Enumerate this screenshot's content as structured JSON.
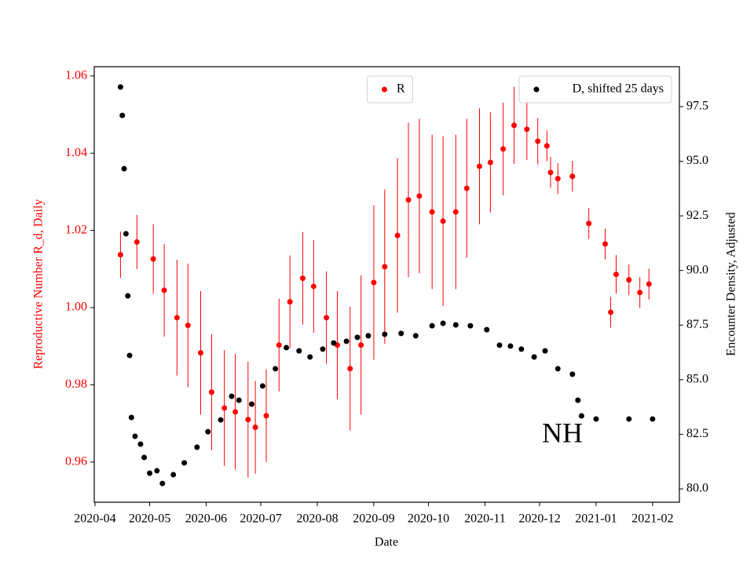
{
  "chart_data": {
    "type": "scatter",
    "xlabel": "Date",
    "ylabel": "Reproductive Number R_d, Daily",
    "y2label": "Encounter Density, Adjusted",
    "annotation": "NH",
    "xlim": [
      18352.6,
      18673.7
    ],
    "xticks": [
      {
        "value": 18353,
        "label": "2020-04"
      },
      {
        "value": 18383,
        "label": "2020-05"
      },
      {
        "value": 18414,
        "label": "2020-06"
      },
      {
        "value": 18444,
        "label": "2020-07"
      },
      {
        "value": 18475,
        "label": "2020-08"
      },
      {
        "value": 18506,
        "label": "2020-09"
      },
      {
        "value": 18536,
        "label": "2020-10"
      },
      {
        "value": 18567,
        "label": "2020-11"
      },
      {
        "value": 18597,
        "label": "2020-12"
      },
      {
        "value": 18628,
        "label": "2021-01"
      },
      {
        "value": 18659,
        "label": "2021-02"
      }
    ],
    "ylim": [
      0.9496,
      1.0624
    ],
    "yticks": [
      0.96,
      0.98,
      {
        "value": 1.0,
        "label": "1.00"
      },
      1.02,
      1.04,
      1.06
    ],
    "y2lim": [
      79.39,
      99.33
    ],
    "y2ticks": [
      {
        "value": 80,
        "label": "80.0"
      },
      82.5,
      {
        "value": 85,
        "label": "85.0"
      },
      87.5,
      {
        "value": 90,
        "label": "90.0"
      },
      92.5,
      {
        "value": 95,
        "label": "95.0"
      },
      97.5
    ],
    "series": [
      {
        "name": "R",
        "color": "#ff0000",
        "axis": "y",
        "legend": "upper center",
        "x": [
          18367,
          18376,
          18385,
          18391,
          18398,
          18404,
          18411,
          18417,
          18424,
          18430,
          18437,
          18441,
          18447,
          18454,
          18460,
          18467,
          18473,
          18480,
          18486,
          18493,
          18499,
          18506,
          18512,
          18519,
          18525,
          18531,
          18538,
          18544,
          18551,
          18557,
          18564,
          18570,
          18577,
          18583,
          18590,
          18596,
          18601,
          18603,
          18607,
          18615,
          18624,
          18633,
          18636,
          18639,
          18646,
          18652,
          18657
        ],
        "values": [
          1.0137,
          1.017,
          1.0126,
          1.0045,
          0.9974,
          0.9954,
          0.9883,
          0.9781,
          0.974,
          0.973,
          0.971,
          0.969,
          0.972,
          0.9903,
          1.0015,
          1.0076,
          1.0055,
          0.9974,
          0.9903,
          0.9842,
          0.9903,
          1.0065,
          1.0106,
          1.0187,
          1.0279,
          1.0289,
          1.0248,
          1.0224,
          1.0248,
          1.0309,
          1.0366,
          1.0376,
          1.0411,
          1.0472,
          1.0462,
          1.0431,
          1.0419,
          1.035,
          1.0334,
          1.034,
          1.0218,
          1.0165,
          0.9988,
          1.0086,
          1.0072,
          1.0039,
          1.0061
        ],
        "errors": [
          0.006,
          0.007,
          0.009,
          0.012,
          0.015,
          0.016,
          0.016,
          0.015,
          0.015,
          0.015,
          0.015,
          0.012,
          0.012,
          0.012,
          0.012,
          0.012,
          0.012,
          0.012,
          0.014,
          0.016,
          0.018,
          0.02,
          0.02,
          0.02,
          0.02,
          0.02,
          0.02,
          0.022,
          0.02,
          0.018,
          0.015,
          0.013,
          0.012,
          0.01,
          0.008,
          0.006,
          0.004,
          0.004,
          0.004,
          0.004,
          0.004,
          0.004,
          0.004,
          0.005,
          0.004,
          0.004,
          0.004
        ]
      },
      {
        "name": "D, shifted 25 days",
        "color": "#000000",
        "axis": "y2",
        "legend": "upper right",
        "x": [
          18367,
          18368,
          18369,
          18370,
          18371,
          18372,
          18373,
          18375,
          18378,
          18380,
          18383,
          18387,
          18390,
          18396,
          18402,
          18409,
          18415,
          18422,
          18428,
          18432,
          18439,
          18445,
          18452,
          18458,
          18465,
          18471,
          18478,
          18484,
          18491,
          18497,
          18503,
          18512,
          18521,
          18529,
          18538,
          18544,
          18551,
          18559,
          18568,
          18575,
          18581,
          18587,
          18594,
          18600,
          18607,
          18615,
          18618,
          18620,
          18628,
          18646,
          18659
        ],
        "values": [
          98.4,
          97.1,
          94.66,
          91.68,
          88.84,
          86.11,
          83.27,
          82.41,
          82.05,
          81.44,
          80.72,
          80.83,
          80.25,
          80.65,
          81.19,
          81.91,
          82.62,
          83.16,
          84.24,
          84.06,
          83.88,
          84.71,
          85.5,
          86.47,
          86.32,
          86.04,
          86.4,
          86.68,
          86.76,
          86.94,
          87.01,
          87.08,
          87.12,
          87.01,
          87.47,
          87.58,
          87.51,
          87.47,
          87.29,
          86.58,
          86.54,
          86.4,
          86.04,
          86.32,
          85.5,
          85.25,
          84.06,
          83.34,
          83.2,
          83.2,
          83.2
        ]
      }
    ]
  }
}
